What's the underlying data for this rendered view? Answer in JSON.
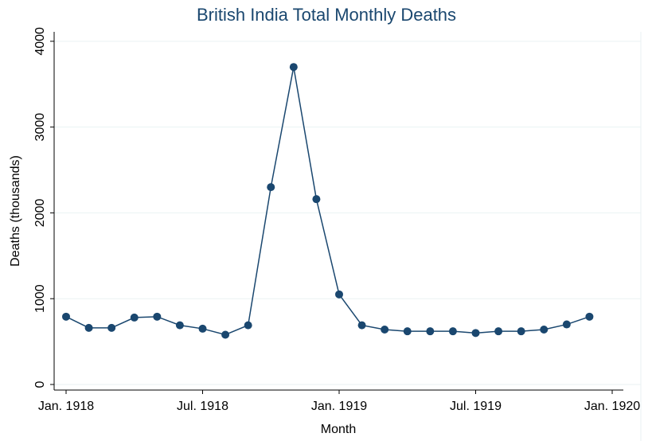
{
  "chart_data": {
    "type": "line",
    "title": "British India Total Monthly Deaths",
    "x_label": "Month",
    "y_label": "Deaths (thousands)",
    "x": [
      "1918-01",
      "1918-02",
      "1918-03",
      "1918-04",
      "1918-05",
      "1918-06",
      "1918-07",
      "1918-08",
      "1918-09",
      "1918-10",
      "1918-11",
      "1918-12",
      "1919-01",
      "1919-02",
      "1919-03",
      "1919-04",
      "1919-05",
      "1919-06",
      "1919-07",
      "1919-08",
      "1919-09",
      "1919-10",
      "1919-11",
      "1919-12"
    ],
    "series": [
      {
        "name": "Deaths",
        "color": "#1a476f",
        "values": [
          790,
          660,
          660,
          780,
          790,
          690,
          650,
          580,
          690,
          2300,
          3700,
          2160,
          1050,
          690,
          640,
          620,
          620,
          620,
          600,
          620,
          620,
          640,
          700,
          790
        ]
      }
    ],
    "xlim": [
      "1918-01",
      "1920-01"
    ],
    "xticks": [
      {
        "value": "1918-01",
        "label": "Jan. 1918"
      },
      {
        "value": "1918-07",
        "label": "Jul. 1918"
      },
      {
        "value": "1919-01",
        "label": "Jan. 1919"
      },
      {
        "value": "1919-07",
        "label": "Jul. 1919"
      },
      {
        "value": "1920-01",
        "label": "Jan. 1920"
      }
    ],
    "ylim": [
      -65,
      4110
    ],
    "yticks": [
      0,
      1000,
      2000,
      3000,
      4000
    ],
    "grid": true
  }
}
